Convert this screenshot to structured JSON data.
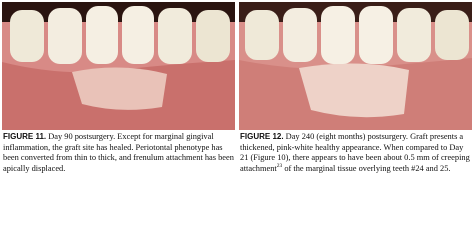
{
  "figures": [
    {
      "label": "FIGURE 11.",
      "caption": "Day 90 postsurgery. Except for marginal gingival inflammation, the graft site has healed. Periotontal phenotype has been converted from thin to thick, and frenulum attachment has been apically displaced."
    },
    {
      "label": "FIGURE 12.",
      "caption_start": "Day 240 (eight months) postsurgery. Graft presents a thickened, pink-white healthy appearance. When compared to Day 21 (Figure 10), there appears to have been about 0.5 mm of creeping attachment",
      "reference": "23",
      "caption_end": "of the marginal tissue overlying teeth #24 and 25."
    }
  ]
}
